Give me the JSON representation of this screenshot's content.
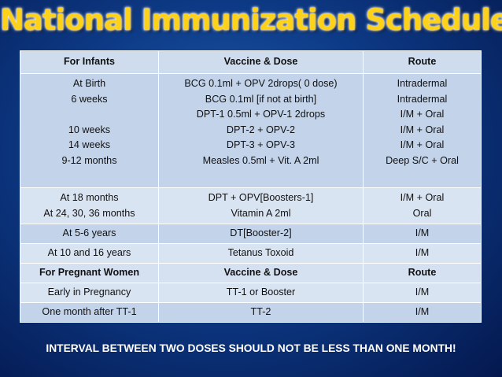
{
  "title": "National Immunization Schedule",
  "table": {
    "header": {
      "col1": "For  Infants",
      "col2": "Vaccine & Dose",
      "col3": "Route"
    },
    "block1": {
      "ages": [
        "At Birth",
        "6 weeks",
        "",
        "10 weeks",
        "14 weeks",
        "9-12 months"
      ],
      "vaccines": [
        "BCG 0.1ml + OPV  2drops( 0 dose)",
        "BCG 0.1ml [if not at birth]",
        "DPT-1 0.5ml + OPV-1 2drops",
        "DPT-2 + OPV-2",
        "DPT-3 + OPV-3",
        "Measles 0.5ml + Vit. A 2ml"
      ],
      "routes": [
        "Intradermal",
        "Intradermal",
        "I/M + Oral",
        "I/M + Oral",
        "I/M + Oral",
        "Deep S/C + Oral"
      ]
    },
    "block2": {
      "ages": [
        "At 18 months",
        "At 24, 30, 36 months"
      ],
      "vaccines": [
        "DPT + OPV[Boosters-1]",
        "Vitamin A 2ml"
      ],
      "routes": [
        "I/M + Oral",
        "Oral"
      ]
    },
    "rows": [
      {
        "age": "At 5-6 years",
        "vaccine": "DT[Booster-2]",
        "route": "I/M"
      },
      {
        "age": "At 10 and 16 years",
        "vaccine": "Tetanus Toxoid",
        "route": "I/M"
      }
    ],
    "pregnant_header": {
      "col1": "For Pregnant Women",
      "col2": "Vaccine & Dose",
      "col3": "Route"
    },
    "pregnant_rows": [
      {
        "age": "Early in Pregnancy",
        "vaccine": "TT-1 or Booster",
        "route": "I/M"
      },
      {
        "age": "One month after TT-1",
        "vaccine": "TT-2",
        "route": "I/M"
      }
    ]
  },
  "footer": "INTERVAL BETWEEN TWO DOSES SHOULD NOT BE LESS THAN ONE MONTH!",
  "colors": {
    "title": "#ffd21a",
    "background": "#0d3a86",
    "table_dark": "#c3d3ea",
    "table_light": "#d9e4f3"
  }
}
